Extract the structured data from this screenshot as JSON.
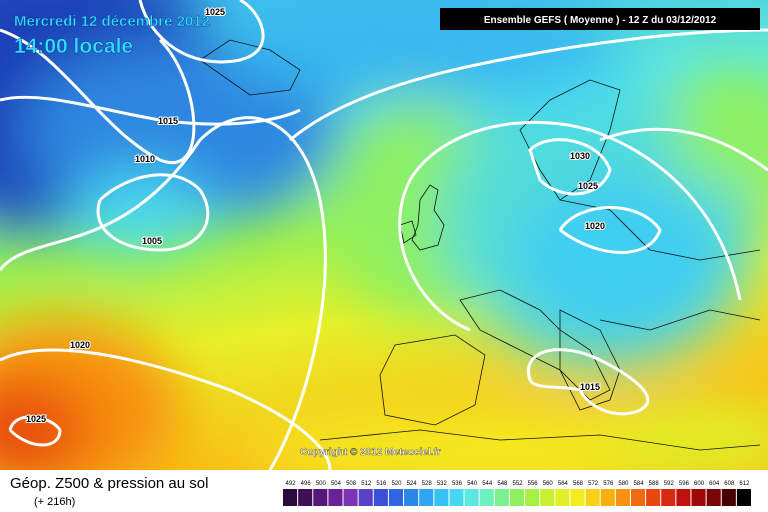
{
  "header": {
    "date": "Mercredi 12 décembre 2012",
    "time": "14:00 locale",
    "model": "Ensemble GEFS ( Moyenne )  -  12 Z du 03/12/2012"
  },
  "copyright": "Copyright © 2012 Meteociel.fr",
  "legend": {
    "title": "Géop. Z500 & pression au sol",
    "subtitle": "(+ 216h)",
    "values": [
      492,
      496,
      500,
      504,
      508,
      512,
      516,
      520,
      524,
      528,
      532,
      536,
      540,
      544,
      548,
      552,
      556,
      560,
      564,
      568,
      572,
      576,
      580,
      584,
      588,
      592,
      596,
      600,
      604,
      608,
      612
    ],
    "colors": [
      "#2b0a3d",
      "#3f1058",
      "#561878",
      "#6b2296",
      "#7c34b4",
      "#5a3fc8",
      "#3c4fd8",
      "#2d66e0",
      "#2b86e8",
      "#2fa6f0",
      "#38c2f4",
      "#46d8f2",
      "#5ce8e0",
      "#6cf0bc",
      "#7cf08c",
      "#8ef060",
      "#a8f040",
      "#c8f030",
      "#e0f028",
      "#f4ec20",
      "#f8d018",
      "#f8b010",
      "#f89010",
      "#f06a10",
      "#e84810",
      "#d82810",
      "#c01010",
      "#a00808",
      "#780404",
      "#480202",
      "#000000"
    ]
  },
  "isobars": [
    "1025",
    "1015",
    "1010",
    "1005",
    "1020",
    "1025",
    "1030",
    "1025",
    "1020",
    "1015"
  ]
}
